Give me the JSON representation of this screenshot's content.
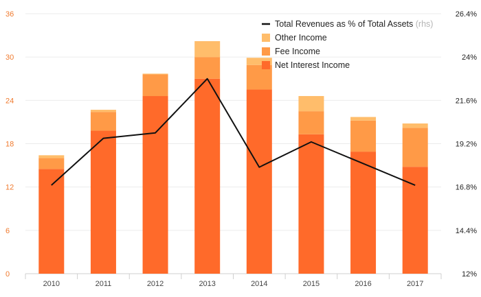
{
  "chart_data": {
    "type": "bar",
    "stacked": true,
    "categories": [
      "2010",
      "2011",
      "2012",
      "2013",
      "2014",
      "2015",
      "2016",
      "2017"
    ],
    "series": [
      {
        "name": "Net Interest Income",
        "color": "#ff6a2a",
        "values": [
          14.5,
          19.8,
          24.6,
          27.0,
          25.5,
          19.3,
          16.9,
          14.8
        ]
      },
      {
        "name": "Fee Income",
        "color": "#ff9a47",
        "values": [
          1.5,
          2.6,
          3.0,
          3.0,
          3.4,
          3.2,
          4.3,
          5.4
        ]
      },
      {
        "name": "Other Income",
        "color": "#ffbd6b",
        "values": [
          0.4,
          0.3,
          0.1,
          2.2,
          1.0,
          2.1,
          0.5,
          0.6
        ]
      }
    ],
    "line_series": {
      "name": "Total Revenues as % of Total Assets",
      "name_suffix": "(rhs)",
      "color": "#111111",
      "values": [
        16.9,
        19.5,
        19.8,
        22.8,
        17.9,
        19.3,
        18.1,
        16.9
      ]
    },
    "yleft": {
      "ylim": [
        0,
        36
      ],
      "ticks": [
        "0",
        "6",
        "12",
        "18",
        "24",
        "30",
        "36"
      ]
    },
    "yright": {
      "ylim": [
        12,
        26.4
      ],
      "ticks": [
        "12%",
        "14.4%",
        "16.8%",
        "19.2%",
        "21.6%",
        "24%",
        "26.4%"
      ]
    },
    "grid": true,
    "legend_position": "top-right"
  }
}
